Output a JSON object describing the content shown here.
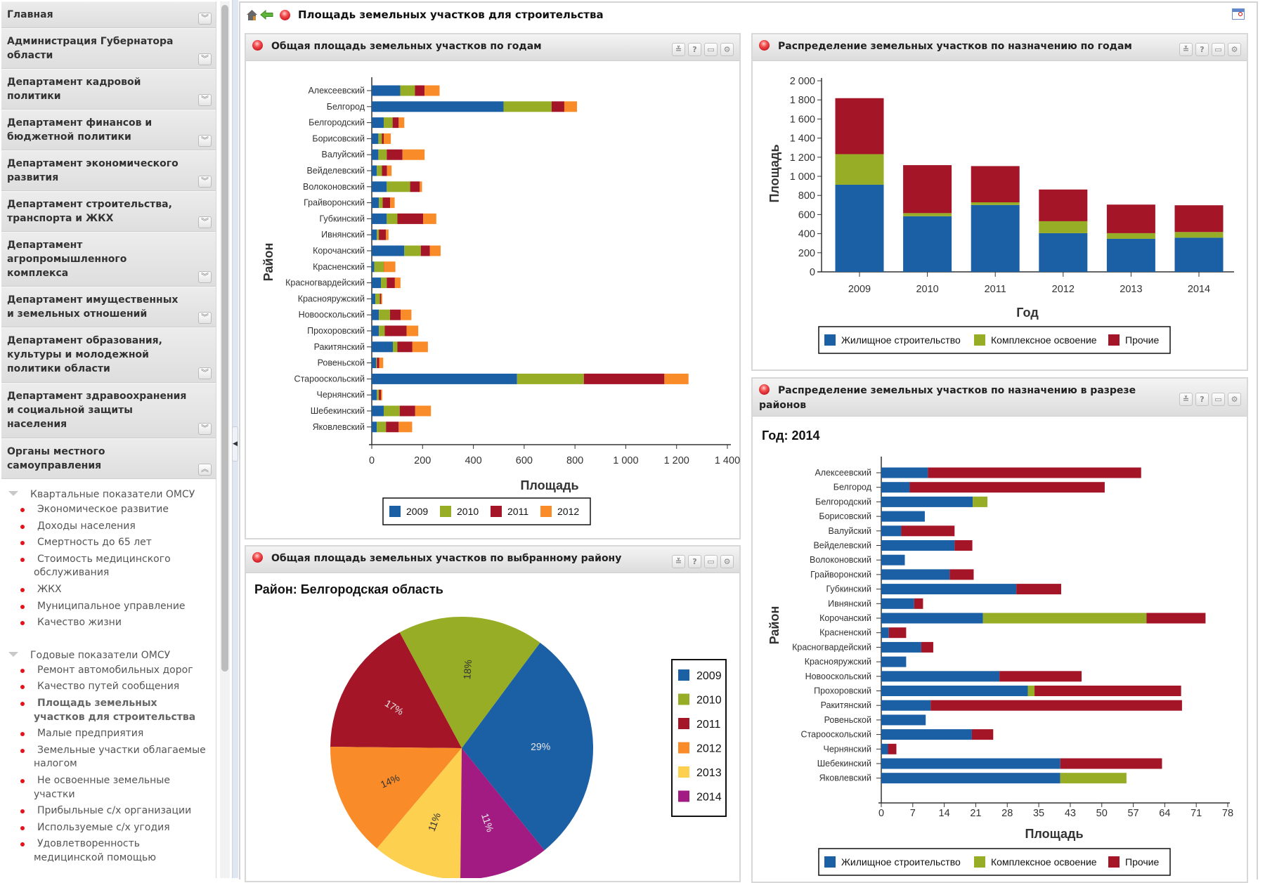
{
  "header": {
    "title": "Площадь земельных участков для строительства"
  },
  "sidebar": {
    "sections": [
      {
        "label": "Главная",
        "expanded": false
      },
      {
        "label": "Администрация Губернатора области",
        "expanded": false
      },
      {
        "label": "Департамент кадровой политики",
        "expanded": false
      },
      {
        "label": "Департамент финансов и бюджетной политики",
        "expanded": false
      },
      {
        "label": "Департамент экономического развития",
        "expanded": false
      },
      {
        "label": "Департамент строительства, транспорта и ЖКХ",
        "expanded": false
      },
      {
        "label": "Департамент агропромышленного комплекса",
        "expanded": false
      },
      {
        "label": "Департамент имущественных и земельных отношений",
        "expanded": false
      },
      {
        "label": "Департамент образования, культуры и молодежной политики области",
        "expanded": false
      },
      {
        "label": "Департамент здравоохранения и социальной защиты населения",
        "expanded": false
      },
      {
        "label": "Органы местного самоуправления",
        "expanded": true
      }
    ],
    "tree": [
      {
        "group": "Квартальные показатели ОМСУ",
        "items": [
          "Экономическое развитие",
          "Доходы населения",
          "Смертность до 65 лет",
          "Стоимость медицинского обслуживания",
          "ЖКХ",
          "Муниципальное управление",
          "Качество жизни"
        ]
      },
      {
        "group": "Годовые показатели ОМСУ",
        "items": [
          "Ремонт автомобильных дорог",
          "Качество путей сообщения",
          "Площадь земельных участков для строительства",
          "Малые предприятия",
          "Земельные участки облагаемые налогом",
          "Не освоенные земельные участки",
          "Прибыльные с/х организации",
          "Используемые с/х угодия",
          "Удовлетворенность медицинской помощью"
        ]
      }
    ],
    "active_item": "Площадь земельных участков для строительства"
  },
  "panels": [
    {
      "title": "Общая площадь земельных участков по годам"
    },
    {
      "title": "Распределение земельных участков по назначению по годам"
    },
    {
      "title": "Общая площадь земельных участков по выбранному району"
    },
    {
      "title": "Распределение земельных участков по назначению в разрезе районов"
    }
  ],
  "panel_buttons": {
    "collapse": "≚",
    "help": "?",
    "maximize": "▭",
    "settings": "⚙"
  },
  "icons": {
    "home": "home-icon",
    "back": "back-arrow-icon",
    "status": "red-orb-icon",
    "calendar": "calendar-icon"
  },
  "colors": {
    "blue": "#1b5fa4",
    "green": "#97ad25",
    "red": "#a31527",
    "orange": "#f98b28",
    "yellow": "#fdd14f",
    "purple": "#a21b83"
  },
  "chart_data": [
    {
      "type": "bar",
      "orientation": "horizontal",
      "stacked": true,
      "categories": [
        "Алексеевский",
        "Белгород",
        "Белгородский",
        "Борисовский",
        "Валуйский",
        "Вейделевский",
        "Волоконовский",
        "Грайворонский",
        "Губкинский",
        "Ивнянский",
        "Корочанский",
        "Красненский",
        "Красногвардейский",
        "Краснояружский",
        "Новооскольский",
        "Прохоровский",
        "Ракитянский",
        "Ровеньской",
        "Старооскольский",
        "Чернянский",
        "Шебекинский",
        "Яковлевский"
      ],
      "series": [
        {
          "name": "2009",
          "color": "#1b5fa4",
          "values": [
            112,
            519,
            47,
            26,
            26,
            20,
            59,
            28,
            59,
            20,
            128,
            10,
            36,
            14,
            28,
            28,
            83,
            17,
            572,
            20,
            47,
            20
          ]
        },
        {
          "name": "2010",
          "color": "#97ad25",
          "values": [
            58,
            189,
            35,
            14,
            33,
            20,
            92,
            15,
            42,
            8,
            65,
            37,
            23,
            18,
            44,
            23,
            18,
            3,
            263,
            8,
            63,
            36
          ]
        },
        {
          "name": "2011",
          "color": "#a31527",
          "values": [
            38,
            50,
            24,
            7,
            62,
            20,
            38,
            29,
            101,
            28,
            36,
            1,
            32,
            5,
            42,
            86,
            59,
            9,
            317,
            8,
            61,
            50
          ]
        },
        {
          "name": "2012",
          "color": "#f98b28",
          "values": [
            59,
            50,
            22,
            28,
            87,
            18,
            9,
            18,
            52,
            10,
            42,
            45,
            22,
            4,
            42,
            46,
            61,
            16,
            95,
            5,
            62,
            53
          ]
        }
      ],
      "xlabel": "Площадь",
      "ylabel": "Район",
      "xlim": [
        0,
        1400
      ],
      "xtick_values": [
        0,
        200,
        400,
        600,
        800,
        1000,
        1200,
        1400
      ],
      "xtick_labels": [
        "0",
        "200",
        "400",
        "600",
        "800",
        "1 000",
        "1 200",
        "1 400"
      ],
      "grid": false,
      "legend": "bottom"
    },
    {
      "type": "bar",
      "orientation": "vertical",
      "stacked": true,
      "categories": [
        "2009",
        "2010",
        "2011",
        "2012",
        "2013",
        "2014"
      ],
      "series": [
        {
          "name": "Жилищное строительство",
          "color": "#1b5fa4",
          "values": [
            912,
            582,
            700,
            405,
            346,
            358
          ]
        },
        {
          "name": "Комплексное освоение",
          "color": "#97ad25",
          "values": [
            320,
            33,
            28,
            125,
            59,
            59
          ]
        },
        {
          "name": "Прочие",
          "color": "#a31527",
          "values": [
            586,
            502,
            379,
            332,
            299,
            280
          ]
        }
      ],
      "xlabel": "Год",
      "ylabel": "Площадь",
      "ylim": [
        0,
        2000
      ],
      "ytick_values": [
        0,
        200,
        400,
        600,
        800,
        1000,
        1200,
        1400,
        1600,
        1800,
        2000
      ],
      "ytick_labels": [
        "0",
        "200",
        "400",
        "600",
        "800",
        "1 000",
        "1 200",
        "1 400",
        "1 600",
        "1 800",
        "2 000"
      ],
      "grid": false,
      "legend": "bottom"
    },
    {
      "type": "pie",
      "title": "Район: Белгородская область",
      "categories": [
        "2009",
        "2010",
        "2011",
        "2012",
        "2013",
        "2014"
      ],
      "values": [
        29,
        18,
        17,
        14,
        11,
        11
      ],
      "labels": [
        "29%",
        "18%",
        "17%",
        "14%",
        "11%",
        "11%"
      ],
      "colors": [
        "#1b5fa4",
        "#97ad25",
        "#a31527",
        "#f98b28",
        "#fdd14f",
        "#a21b83"
      ],
      "legend": "right"
    },
    {
      "type": "bar",
      "orientation": "horizontal",
      "stacked": true,
      "title": "Год: 2014",
      "categories": [
        "Алексеевский",
        "Белгород",
        "Белгородский",
        "Борисовский",
        "Валуйский",
        "Вейделевский",
        "Волоконовский",
        "Грайворонский",
        "Губкинский",
        "Ивнянский",
        "Корочанский",
        "Красненский",
        "Красногвардейский",
        "Краснояружский",
        "Новооскольский",
        "Прохоровский",
        "Ракитянский",
        "Ровеньской",
        "Старооскольский",
        "Чернянский",
        "Шебекинский",
        "Яковлевский"
      ],
      "series": [
        {
          "name": "Жилищное строительство",
          "color": "#1b5fa4",
          "values": [
            10.5,
            6.4,
            20.6,
            9.8,
            4.5,
            16.5,
            5.3,
            15.4,
            30.4,
            7.4,
            22.9,
            1.7,
            9,
            5.6,
            26.6,
            33,
            11.1,
            10,
            20.4,
            1.5,
            40.3,
            40.3
          ]
        },
        {
          "name": "Комплексное освоение",
          "color": "#97ad25",
          "values": [
            0,
            0,
            3.3,
            0,
            0,
            0,
            0,
            0,
            0,
            0,
            36.8,
            0,
            0,
            0,
            0,
            1.5,
            0,
            0,
            0,
            0,
            0,
            14.9
          ]
        },
        {
          "name": "Прочие",
          "color": "#a31527",
          "values": [
            48,
            43.9,
            0,
            0,
            12,
            4,
            0,
            5.4,
            10.1,
            2,
            13.3,
            3.9,
            2.7,
            0,
            18.5,
            33,
            56.6,
            0,
            4.8,
            1.9,
            22.9,
            0
          ]
        }
      ],
      "xlabel": "Площадь",
      "ylabel": "Район",
      "xlim": [
        0,
        78
      ],
      "xtick_values": [
        0,
        7.09,
        14.18,
        21.27,
        28.36,
        35.45,
        42.55,
        49.64,
        56.73,
        63.82,
        70.91,
        78
      ],
      "xtick_labels": [
        "0",
        "7",
        "14",
        "21",
        "28",
        "35",
        "43",
        "50",
        "57",
        "64",
        "71",
        "78"
      ],
      "grid": false,
      "legend": "bottom"
    }
  ]
}
